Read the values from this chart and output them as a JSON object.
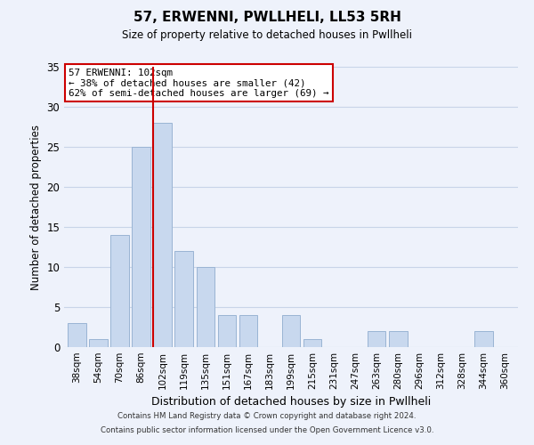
{
  "title": "57, ERWENNI, PWLLHELI, LL53 5RH",
  "subtitle": "Size of property relative to detached houses in Pwllheli",
  "xlabel": "Distribution of detached houses by size in Pwllheli",
  "ylabel": "Number of detached properties",
  "categories": [
    "38sqm",
    "54sqm",
    "70sqm",
    "86sqm",
    "102sqm",
    "119sqm",
    "135sqm",
    "151sqm",
    "167sqm",
    "183sqm",
    "199sqm",
    "215sqm",
    "231sqm",
    "247sqm",
    "263sqm",
    "280sqm",
    "296sqm",
    "312sqm",
    "328sqm",
    "344sqm",
    "360sqm"
  ],
  "values": [
    3,
    1,
    14,
    25,
    28,
    12,
    10,
    4,
    4,
    0,
    4,
    1,
    0,
    0,
    2,
    2,
    0,
    0,
    0,
    2,
    0
  ],
  "bar_color": "#c8d8ee",
  "bar_edge_color": "#9ab4d4",
  "highlight_index": 4,
  "highlight_line_color": "#cc0000",
  "ylim": [
    0,
    35
  ],
  "yticks": [
    0,
    5,
    10,
    15,
    20,
    25,
    30,
    35
  ],
  "annotation_title": "57 ERWENNI: 102sqm",
  "annotation_line1": "← 38% of detached houses are smaller (42)",
  "annotation_line2": "62% of semi-detached houses are larger (69) →",
  "annotation_box_color": "#ffffff",
  "annotation_box_edge": "#cc0000",
  "grid_color": "#c8d4e8",
  "background_color": "#eef2fb",
  "footer1": "Contains HM Land Registry data © Crown copyright and database right 2024.",
  "footer2": "Contains public sector information licensed under the Open Government Licence v3.0."
}
